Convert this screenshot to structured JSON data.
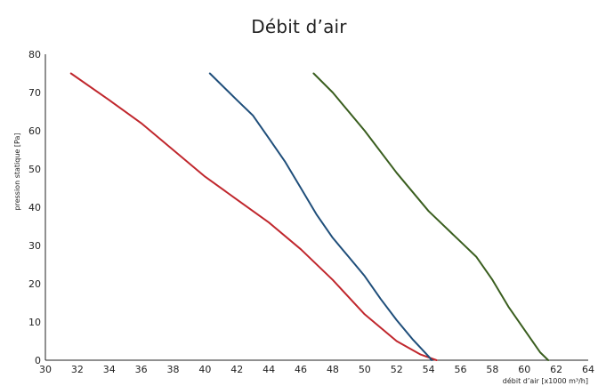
{
  "chart_data": {
    "type": "line",
    "title": "Débit d’air",
    "xlabel": "débit d’air [x1000 m³/h]",
    "ylabel": "pression statique [Pa]",
    "xlim": [
      30,
      64
    ],
    "ylim": [
      0,
      80
    ],
    "x_ticks": [
      30,
      32,
      34,
      36,
      38,
      40,
      42,
      44,
      46,
      48,
      50,
      52,
      54,
      56,
      58,
      60,
      62,
      64
    ],
    "y_ticks": [
      0,
      10,
      20,
      30,
      40,
      50,
      60,
      70,
      80
    ],
    "grid": false,
    "series": [
      {
        "color": "#c0272d",
        "points": [
          [
            31.6,
            75
          ],
          [
            34,
            68
          ],
          [
            36,
            62
          ],
          [
            38,
            55
          ],
          [
            40,
            48
          ],
          [
            42,
            42
          ],
          [
            44,
            36
          ],
          [
            46,
            29
          ],
          [
            48,
            21
          ],
          [
            50,
            12
          ],
          [
            52,
            5
          ],
          [
            53.5,
            1.5
          ],
          [
            54.5,
            0
          ]
        ]
      },
      {
        "color": "#1f4e7a",
        "points": [
          [
            40.3,
            75
          ],
          [
            42,
            68
          ],
          [
            43,
            64
          ],
          [
            44,
            58
          ],
          [
            45,
            52
          ],
          [
            46,
            45
          ],
          [
            47,
            38
          ],
          [
            48,
            32
          ],
          [
            49,
            27
          ],
          [
            50,
            22
          ],
          [
            51,
            16
          ],
          [
            52,
            10.5
          ],
          [
            53,
            5.5
          ],
          [
            54,
            1
          ],
          [
            54.2,
            0
          ]
        ]
      },
      {
        "color": "#3a5e1f",
        "points": [
          [
            46.8,
            75
          ],
          [
            48,
            70
          ],
          [
            50,
            60
          ],
          [
            52,
            49
          ],
          [
            54,
            39
          ],
          [
            56,
            31
          ],
          [
            57,
            27
          ],
          [
            58,
            21
          ],
          [
            59,
            14
          ],
          [
            60,
            8
          ],
          [
            61,
            2
          ],
          [
            61.5,
            0
          ]
        ]
      }
    ]
  }
}
